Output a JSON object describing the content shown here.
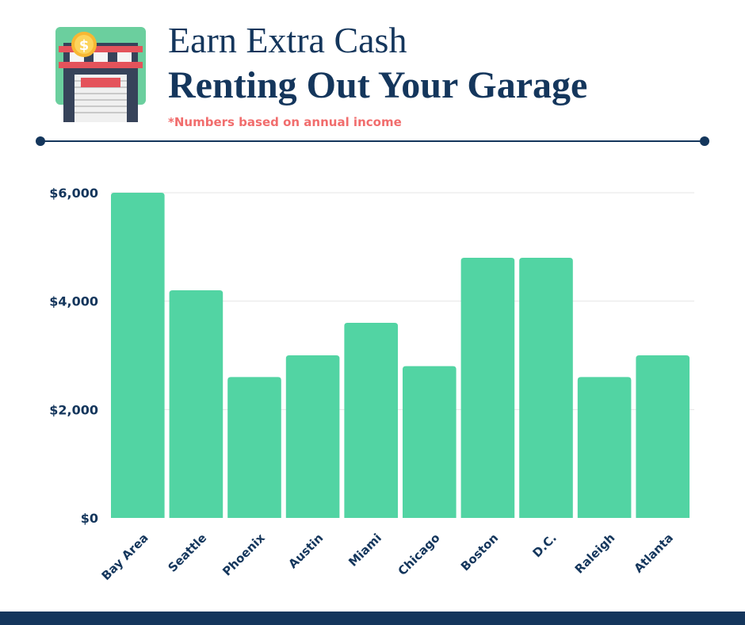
{
  "header": {
    "title_line1": "Earn Extra Cash",
    "title_line2": "Renting Out Your Garage",
    "subtitle": "*Numbers based on annual income"
  },
  "icons": {
    "logo": "garage-dollar-icon"
  },
  "colors": {
    "navy": "#14365c",
    "bar": "#52d4a3",
    "accent": "#f16d6d",
    "grid": "#e6e6e6"
  },
  "chart_data": {
    "type": "bar",
    "title": "",
    "xlabel": "",
    "ylabel": "",
    "categories": [
      "Bay Area",
      "Seattle",
      "Phoenix",
      "Austin",
      "Miami",
      "Chicago",
      "Boston",
      "D.C.",
      "Raleigh",
      "Atlanta"
    ],
    "values": [
      6000,
      4200,
      2600,
      3000,
      3600,
      2800,
      4800,
      4800,
      2600,
      3000
    ],
    "yticks": [
      0,
      2000,
      4000,
      6000
    ],
    "ytick_labels": [
      "$0",
      "$2,000",
      "$4,000",
      "$6,000"
    ],
    "ylim": [
      0,
      6000
    ],
    "grid": true,
    "legend": "none"
  }
}
